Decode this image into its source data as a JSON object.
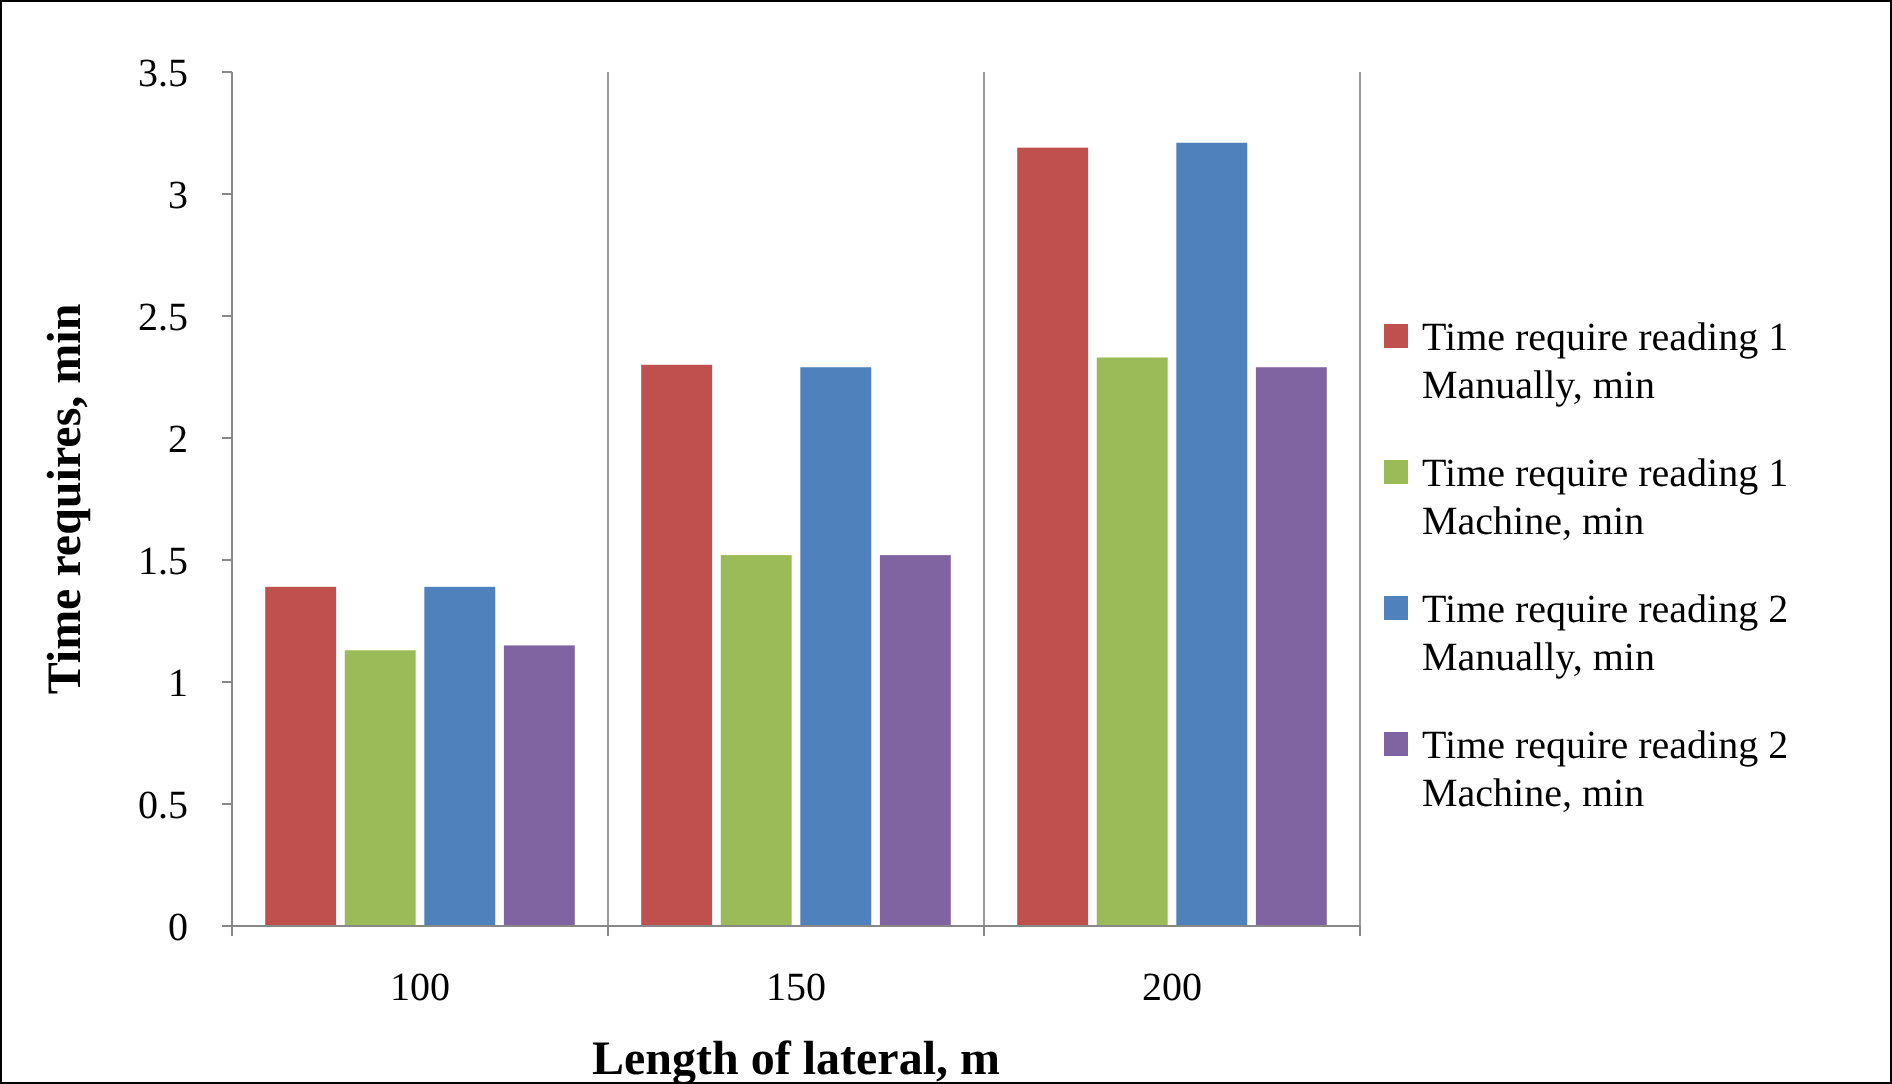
{
  "chart_data": {
    "type": "bar",
    "xlabel": "Length of lateral, m",
    "ylabel": "Time requires, min",
    "categories": [
      "100",
      "150",
      "200"
    ],
    "series": [
      {
        "name": "Time require reading 1 Manually, min",
        "color": "#c0504d",
        "values": [
          1.39,
          2.3,
          3.19
        ]
      },
      {
        "name": "Time require reading 1 Machine, min",
        "color": "#9bbb59",
        "values": [
          1.13,
          1.52,
          2.33
        ]
      },
      {
        "name": "Time require reading 2 Manually, min",
        "color": "#4f81bd",
        "values": [
          1.39,
          2.29,
          3.21
        ]
      },
      {
        "name": "Time require reading 2 Machine, min",
        "color": "#8064a2",
        "values": [
          1.15,
          1.52,
          2.29
        ]
      }
    ],
    "ylim": [
      0,
      3.5
    ],
    "yticks": [
      0,
      {
        "value": 0.5,
        "label": "0.5"
      },
      1,
      {
        "value": 1.5,
        "label": "1.5"
      },
      2,
      {
        "value": 2.5,
        "label": "2.5"
      },
      3,
      {
        "value": 3.5,
        "label": "3.5"
      }
    ],
    "grid": "x",
    "legend": "right"
  }
}
